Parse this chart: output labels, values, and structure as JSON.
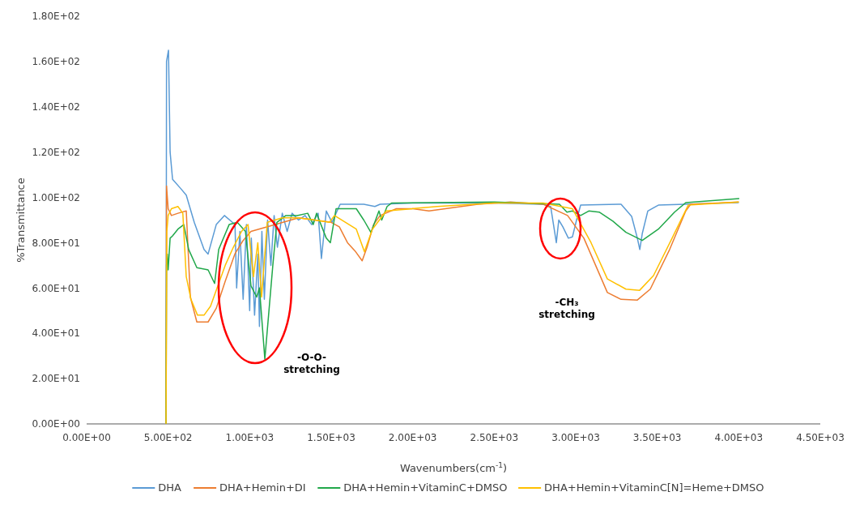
{
  "chart_data": {
    "type": "line",
    "xlabel": "Wavenumbers(cm$^{-1}$)",
    "ylabel": "%Transmittance",
    "xlim": [
      0,
      4500
    ],
    "ylim": [
      0,
      180
    ],
    "xticks": [
      {
        "value": 0,
        "label": "0.00E+00"
      },
      {
        "value": 500,
        "label": "5.00E+02"
      },
      {
        "value": 1000,
        "label": "1.00E+03"
      },
      {
        "value": 1500,
        "label": "1.50E+03"
      },
      {
        "value": 2000,
        "label": "2.00E+03"
      },
      {
        "value": 2500,
        "label": "2.50E+03"
      },
      {
        "value": 3000,
        "label": "3.00E+03"
      },
      {
        "value": 3500,
        "label": "3.50E+03"
      },
      {
        "value": 4000,
        "label": "4.00E+03"
      },
      {
        "value": 4500,
        "label": "4.50E+03"
      }
    ],
    "yticks": [
      {
        "value": 0,
        "label": "0.00E+00"
      },
      {
        "value": 20,
        "label": "2.00E+01"
      },
      {
        "value": 40,
        "label": "4.00E+01"
      },
      {
        "value": 60,
        "label": "6.00E+01"
      },
      {
        "value": 80,
        "label": "8.00E+01"
      },
      {
        "value": 100,
        "label": "1.00E+02"
      },
      {
        "value": 120,
        "label": "1.20E+02"
      },
      {
        "value": 140,
        "label": "1.40E+02"
      },
      {
        "value": 160,
        "label": "1.60E+02"
      },
      {
        "value": 180,
        "label": "1.80E+02"
      }
    ],
    "grid": false,
    "legend": "bottom",
    "marker": "none",
    "line_style": "solid",
    "annotations": [
      "-O-O- stretching",
      "-CH₃ stretching"
    ],
    "series": [
      {
        "name": "DHA",
        "color": "#5b9bd5",
        "x": [
          487,
          490,
          502,
          512,
          527,
          576,
          611,
          660,
          720,
          745,
          795,
          845,
          894,
          910,
          920,
          940,
          960,
          980,
          1000,
          1010,
          1030,
          1050,
          1060,
          1075,
          1090,
          1110,
          1130,
          1150,
          1170,
          1200,
          1230,
          1260,
          1300,
          1340,
          1380,
          1420,
          1440,
          1470,
          1505,
          1555,
          1700,
          1768,
          1800,
          2000,
          2500,
          2800,
          2846,
          2881,
          2896,
          2921,
          2955,
          2980,
          3005,
          3030,
          3278,
          3343,
          3378,
          3393,
          3408,
          3442,
          3507,
          4000
        ],
        "values": [
          0,
          160,
          165,
          120,
          108,
          104,
          101,
          89,
          77,
          75,
          88,
          92,
          89,
          88,
          60,
          85,
          55,
          88,
          50,
          82,
          48,
          75,
          43,
          85,
          55,
          90,
          70,
          92,
          78,
          93,
          85,
          93,
          90,
          92,
          88,
          93,
          73,
          94,
          89,
          97,
          97,
          96,
          97,
          97.5,
          97.5,
          97,
          96,
          80,
          90,
          87,
          82,
          82.6,
          90,
          96.6,
          97,
          91.6,
          82,
          77,
          84,
          94,
          96.6,
          97.7
        ]
      },
      {
        "name": "DHA+Hemin+DI",
        "color": "#ed7d31",
        "x": [
          487,
          490,
          500,
          520,
          560,
          611,
          636,
          676,
          745,
          795,
          850,
          909,
          960,
          1008,
          1157,
          1300,
          1400,
          1500,
          1550,
          1600,
          1650,
          1690,
          1720,
          1760,
          1800,
          1900,
          2000,
          2100,
          2200,
          2400,
          2600,
          2800,
          2950,
          3050,
          3194,
          3278,
          3378,
          3457,
          3576,
          3675,
          3705,
          4000
        ],
        "values": [
          0,
          105,
          95,
          92,
          93,
          94,
          56,
          45,
          45,
          51,
          63,
          75,
          81,
          85,
          88,
          91,
          90,
          89,
          87,
          80,
          76,
          72,
          78,
          88,
          92,
          95,
          95,
          94,
          95,
          97,
          98,
          97,
          92,
          82,
          58,
          55,
          54.7,
          59.5,
          77,
          94,
          97,
          98
        ]
      },
      {
        "name": "DHA+Hemin+VitaminC+DMSO",
        "color": "#21a84a",
        "x": [
          487,
          490,
          495,
          500,
          512,
          527,
          560,
          596,
          626,
          676,
          745,
          785,
          810,
          874,
          924,
          974,
          1008,
          1043,
          1060,
          1093,
          1142,
          1167,
          1222,
          1291,
          1356,
          1390,
          1410,
          1470,
          1495,
          1530,
          1654,
          1700,
          1744,
          1793,
          1810,
          1843,
          1870,
          2500,
          2900,
          2946,
          2980,
          3030,
          3080,
          3144,
          3228,
          3308,
          3408,
          3507,
          3606,
          3675,
          4003
        ],
        "values": [
          0,
          70,
          75,
          68,
          82,
          83,
          86,
          88,
          77,
          69,
          68,
          62,
          77,
          88,
          89,
          85,
          61,
          56,
          60,
          28.6,
          70,
          89,
          92,
          92,
          93,
          88,
          93,
          82,
          80,
          95,
          95,
          90,
          84.5,
          94,
          90,
          96,
          97.5,
          98,
          97,
          93.5,
          94,
          92,
          94,
          93.5,
          89.5,
          84.6,
          81,
          86,
          93.5,
          97.7,
          99.5
        ]
      },
      {
        "name": "DHA+Hemin+VitaminC[N]=Heme+DMSO",
        "color": "#ffc000",
        "x": [
          487,
          492,
          500,
          520,
          560,
          590,
          611,
          640,
          680,
          720,
          760,
          800,
          850,
          900,
          950,
          990,
          1023,
          1050,
          1073,
          1108,
          1200,
          1300,
          1400,
          1490,
          1520,
          1654,
          1704,
          1753,
          1838,
          2150,
          2500,
          2800,
          2980,
          3094,
          3194,
          3308,
          3392,
          3477,
          3591,
          3690,
          4000
        ],
        "values": [
          0,
          85,
          92,
          95,
          96,
          93,
          65,
          55,
          48,
          48,
          52,
          60,
          70,
          78,
          85,
          88,
          65,
          80,
          56,
          89,
          91,
          91,
          90,
          89,
          92,
          86,
          76,
          86,
          94,
          96,
          97.5,
          97.5,
          95,
          80,
          64,
          59.5,
          59,
          65.5,
          82,
          96.6,
          98
        ]
      }
    ]
  }
}
